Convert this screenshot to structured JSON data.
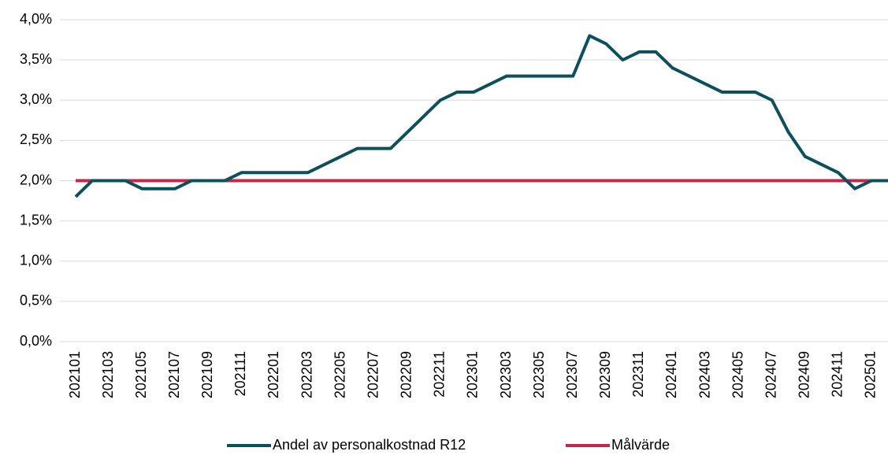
{
  "chart_data": {
    "type": "line",
    "categories": [
      "202101",
      null,
      "202103",
      null,
      "202105",
      null,
      "202107",
      null,
      "202109",
      null,
      "202111",
      null,
      "202201",
      null,
      "202203",
      null,
      "202205",
      null,
      "202207",
      null,
      "202209",
      null,
      "202211",
      null,
      "202301",
      null,
      "202303",
      null,
      "202305",
      null,
      "202307",
      null,
      "202309",
      null,
      "202311",
      null,
      "202401",
      null,
      "202403",
      null,
      "202405",
      null,
      "202407",
      null,
      "202409",
      null,
      "202411",
      null,
      "202501",
      null
    ],
    "series": [
      {
        "name": "Andel av personalkostnad R12",
        "color": "#0d4f5c",
        "values": [
          1.8,
          2.0,
          2.0,
          2.0,
          1.9,
          1.9,
          1.9,
          2.0,
          2.0,
          2.0,
          2.1,
          2.1,
          2.1,
          2.1,
          2.1,
          2.2,
          2.3,
          2.4,
          2.4,
          2.4,
          2.6,
          2.8,
          3.0,
          3.1,
          3.1,
          3.2,
          3.3,
          3.3,
          3.3,
          3.3,
          3.3,
          3.8,
          3.7,
          3.5,
          3.6,
          3.6,
          3.4,
          3.3,
          3.2,
          3.1,
          3.1,
          3.1,
          3.0,
          2.6,
          2.3,
          2.2,
          2.1,
          1.9,
          2.0,
          2.0
        ]
      },
      {
        "name": "Målvärde",
        "color": "#be2a4e",
        "values": [
          2.0,
          2.0,
          2.0,
          2.0,
          2.0,
          2.0,
          2.0,
          2.0,
          2.0,
          2.0,
          2.0,
          2.0,
          2.0,
          2.0,
          2.0,
          2.0,
          2.0,
          2.0,
          2.0,
          2.0,
          2.0,
          2.0,
          2.0,
          2.0,
          2.0,
          2.0,
          2.0,
          2.0,
          2.0,
          2.0,
          2.0,
          2.0,
          2.0,
          2.0,
          2.0,
          2.0,
          2.0,
          2.0,
          2.0,
          2.0,
          2.0,
          2.0,
          2.0,
          2.0,
          2.0,
          2.0,
          2.0,
          2.0,
          2.0,
          2.0
        ]
      }
    ],
    "ylim": [
      0,
      4
    ],
    "yticks": [
      {
        "value": 0,
        "label": "0,0%"
      },
      {
        "value": 0.5,
        "label": "0,5%"
      },
      {
        "value": 1,
        "label": "1,0%"
      },
      {
        "value": 1.5,
        "label": "1,5%"
      },
      {
        "value": 2,
        "label": "2,0%"
      },
      {
        "value": 2.5,
        "label": "2,5%"
      },
      {
        "value": 3,
        "label": "3,0%"
      },
      {
        "value": 3.5,
        "label": "3,5%"
      },
      {
        "value": 4,
        "label": "4,0%"
      }
    ],
    "grid": true,
    "legend": "bottom"
  }
}
